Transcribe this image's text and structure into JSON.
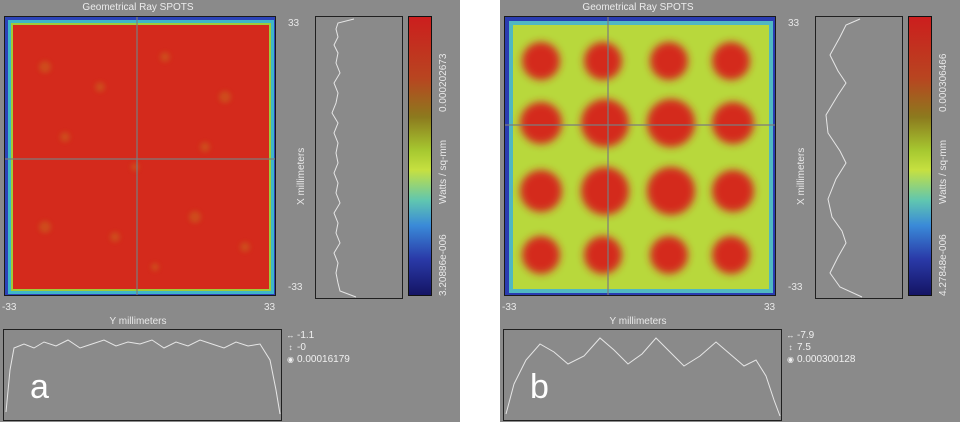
{
  "panels": [
    {
      "letter": "a",
      "title": "Geometrical Ray SPOTS",
      "axis_top_right": "33",
      "axis_bottom_right": "33",
      "axis_bottom_left": "-33",
      "axis_bottom_left2": "-33",
      "x_axis_label": "Y millimeters",
      "y_axis_label": "X millimeters",
      "colorbar_unit": "Watts / sq-mm",
      "colorbar_max": "0.000202673",
      "colorbar_min": "3.20886e-006",
      "readout_1": "-1.1",
      "readout_2": "-0",
      "readout_3": "0.00016179",
      "readout_1_icon": "horizontal-arrows-icon",
      "readout_2_icon": "vertical-arrows-icon",
      "readout_3_icon": "target-icon"
    },
    {
      "letter": "b",
      "title": "Geometrical Ray SPOTS",
      "axis_top_right": "33",
      "axis_bottom_right": "33",
      "axis_bottom_left": "-33",
      "axis_bottom_left2": "-33",
      "x_axis_label": "Y millimeters",
      "y_axis_label": "X millimeters",
      "colorbar_unit": "Watts / sq-mm",
      "colorbar_max": "0.000306466",
      "colorbar_min": "4.27848e-006",
      "readout_1": "-7.9",
      "readout_2": "7.5",
      "readout_3": "0.000300128",
      "readout_1_icon": "horizontal-arrows-icon",
      "readout_2_icon": "vertical-arrows-icon",
      "readout_3_icon": "target-icon"
    }
  ],
  "colors": {
    "panel_bg": "#8a8a8a",
    "hot": "#d42a1c",
    "mid": "#b8d83c",
    "edge": "#3a52c4"
  }
}
